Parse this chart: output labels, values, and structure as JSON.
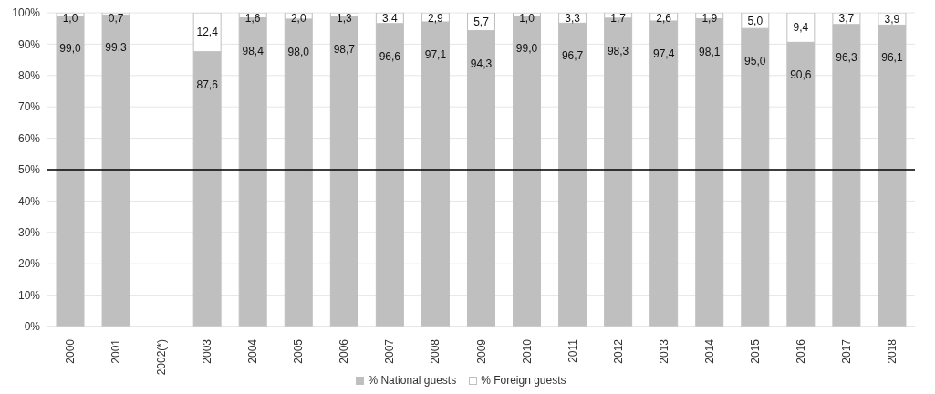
{
  "chart_data": {
    "type": "bar",
    "stacked": true,
    "categories": [
      "2000",
      "2001",
      "2002(*)",
      "2003",
      "2004",
      "2005",
      "2006",
      "2007",
      "2008",
      "2009",
      "2010",
      "2011",
      "2012",
      "2013",
      "2014",
      "2015",
      "2016",
      "2017",
      "2018"
    ],
    "series": [
      {
        "name": "% National guests",
        "color": "#bfbfbf",
        "values": [
          99.0,
          99.3,
          null,
          87.6,
          98.4,
          98.0,
          98.7,
          96.6,
          97.1,
          94.3,
          99.0,
          96.7,
          98.3,
          97.4,
          98.1,
          95.0,
          90.6,
          96.3,
          96.1
        ],
        "value_labels": [
          "99,0",
          "99,3",
          null,
          "87,6",
          "98,4",
          "98,0",
          "98,7",
          "96,6",
          "97,1",
          "94,3",
          "99,0",
          "96,7",
          "98,3",
          "97,4",
          "98,1",
          "95,0",
          "90,6",
          "96,3",
          "96,1"
        ]
      },
      {
        "name": "% Foreign guests",
        "color": "#ffffff",
        "values": [
          1.0,
          0.7,
          null,
          12.4,
          1.6,
          2.0,
          1.3,
          3.4,
          2.9,
          5.7,
          1.0,
          3.3,
          1.7,
          2.6,
          1.9,
          5.0,
          9.4,
          3.7,
          3.9
        ],
        "value_labels": [
          "1,0",
          "0,7",
          null,
          "12,4",
          "1,6",
          "2,0",
          "1,3",
          "3,4",
          "2,9",
          "5,7",
          "1,0",
          "3,3",
          "1,7",
          "2,6",
          "1,9",
          "5,0",
          "9,4",
          "3,7",
          "3,9"
        ]
      }
    ],
    "ylim": [
      0,
      100
    ],
    "yticks": [
      {
        "value": 0,
        "label": "0%"
      },
      {
        "value": 10,
        "label": "10%"
      },
      {
        "value": 20,
        "label": "20%"
      },
      {
        "value": 30,
        "label": "30%"
      },
      {
        "value": 40,
        "label": "40%"
      },
      {
        "value": 50,
        "label": "50%"
      },
      {
        "value": 60,
        "label": "60%"
      },
      {
        "value": 70,
        "label": "70%"
      },
      {
        "value": 80,
        "label": "80%"
      },
      {
        "value": 90,
        "label": "90%"
      },
      {
        "value": 100,
        "label": "100%"
      }
    ],
    "ref_lines": [
      {
        "axis": "y",
        "value": 50,
        "color": "#000000"
      }
    ],
    "grid": "y",
    "legend": "bottom"
  }
}
